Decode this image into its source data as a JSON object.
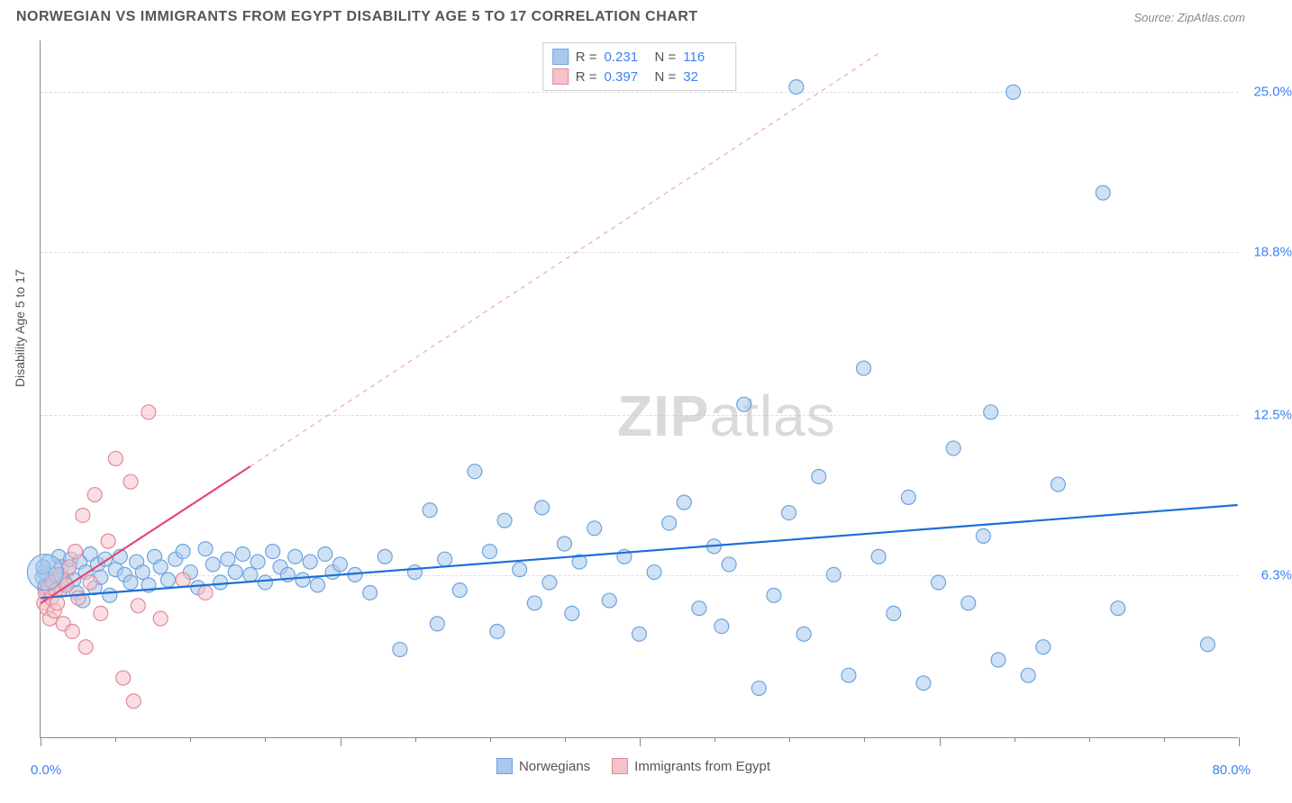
{
  "header": {
    "title": "NORWEGIAN VS IMMIGRANTS FROM EGYPT DISABILITY AGE 5 TO 17 CORRELATION CHART",
    "source": "Source: ZipAtlas.com"
  },
  "watermark": {
    "bold": "ZIP",
    "light": "atlas"
  },
  "chart": {
    "type": "scatter",
    "ylabel": "Disability Age 5 to 17",
    "xlim": [
      0,
      80
    ],
    "ylim": [
      0,
      27
    ],
    "x_left_label": "0.0%",
    "x_right_label": "80.0%",
    "ytick_labels": [
      {
        "v": 6.3,
        "label": "6.3%"
      },
      {
        "v": 12.5,
        "label": "12.5%"
      },
      {
        "v": 18.8,
        "label": "18.8%"
      },
      {
        "v": 25.0,
        "label": "25.0%"
      }
    ],
    "xticks_minor": [
      0,
      5,
      10,
      15,
      20,
      25,
      30,
      35,
      40,
      45,
      50,
      55,
      60,
      65,
      70,
      75,
      80
    ],
    "xticks_major": [
      0,
      20,
      40,
      60,
      80
    ],
    "background_color": "#ffffff",
    "grid_color": "#dddddd",
    "series": [
      {
        "name": "Norwegians",
        "color_fill": "#a8c8ec",
        "color_stroke": "#6fa3dc",
        "fill_opacity": 0.55,
        "marker_r": 8,
        "trend": {
          "x1": 0,
          "y1": 5.4,
          "x2": 80,
          "y2": 9.0,
          "stroke": "#1d6fd8",
          "width": 2.2,
          "dash": ""
        },
        "R": "0.231",
        "N": "116",
        "points": [
          [
            0.2,
            6.4
          ],
          [
            0.3,
            5.9
          ],
          [
            0.5,
            6.8
          ],
          [
            0.8,
            6.1
          ],
          [
            1,
            6.3
          ],
          [
            1.2,
            7.0
          ],
          [
            1.3,
            5.7
          ],
          [
            1.4,
            6.6
          ],
          [
            1.6,
            6.0
          ],
          [
            1.8,
            6.5
          ],
          [
            2.0,
            6.9
          ],
          [
            2.2,
            6.1
          ],
          [
            2.4,
            5.6
          ],
          [
            2.6,
            6.8
          ],
          [
            2.8,
            5.3
          ],
          [
            3.0,
            6.4
          ],
          [
            3.3,
            7.1
          ],
          [
            3.6,
            5.8
          ],
          [
            3.8,
            6.7
          ],
          [
            4.0,
            6.2
          ],
          [
            4.3,
            6.9
          ],
          [
            4.6,
            5.5
          ],
          [
            5.0,
            6.5
          ],
          [
            5.3,
            7.0
          ],
          [
            5.6,
            6.3
          ],
          [
            6.0,
            6.0
          ],
          [
            6.4,
            6.8
          ],
          [
            6.8,
            6.4
          ],
          [
            7.2,
            5.9
          ],
          [
            7.6,
            7.0
          ],
          [
            8.0,
            6.6
          ],
          [
            8.5,
            6.1
          ],
          [
            9.0,
            6.9
          ],
          [
            9.5,
            7.2
          ],
          [
            10,
            6.4
          ],
          [
            10.5,
            5.8
          ],
          [
            11,
            7.3
          ],
          [
            11.5,
            6.7
          ],
          [
            12,
            6.0
          ],
          [
            12.5,
            6.9
          ],
          [
            13,
            6.4
          ],
          [
            13.5,
            7.1
          ],
          [
            14,
            6.3
          ],
          [
            14.5,
            6.8
          ],
          [
            15,
            6.0
          ],
          [
            15.5,
            7.2
          ],
          [
            16,
            6.6
          ],
          [
            16.5,
            6.3
          ],
          [
            17,
            7.0
          ],
          [
            17.5,
            6.1
          ],
          [
            18,
            6.8
          ],
          [
            18.5,
            5.9
          ],
          [
            19,
            7.1
          ],
          [
            19.5,
            6.4
          ],
          [
            20,
            6.7
          ],
          [
            21,
            6.3
          ],
          [
            22,
            5.6
          ],
          [
            23,
            7.0
          ],
          [
            24,
            3.4
          ],
          [
            25,
            6.4
          ],
          [
            26,
            8.8
          ],
          [
            26.5,
            4.4
          ],
          [
            27,
            6.9
          ],
          [
            28,
            5.7
          ],
          [
            29,
            10.3
          ],
          [
            30,
            7.2
          ],
          [
            30.5,
            4.1
          ],
          [
            31,
            8.4
          ],
          [
            32,
            6.5
          ],
          [
            33,
            5.2
          ],
          [
            33.5,
            8.9
          ],
          [
            34,
            6.0
          ],
          [
            35,
            7.5
          ],
          [
            35.5,
            4.8
          ],
          [
            36,
            6.8
          ],
          [
            37,
            8.1
          ],
          [
            38,
            5.3
          ],
          [
            39,
            7.0
          ],
          [
            40,
            4.0
          ],
          [
            41,
            6.4
          ],
          [
            42,
            8.3
          ],
          [
            43,
            9.1
          ],
          [
            44,
            5.0
          ],
          [
            45,
            7.4
          ],
          [
            45.5,
            4.3
          ],
          [
            46,
            6.7
          ],
          [
            47,
            12.9
          ],
          [
            48,
            1.9
          ],
          [
            49,
            5.5
          ],
          [
            50,
            8.7
          ],
          [
            50.5,
            25.2
          ],
          [
            51,
            4.0
          ],
          [
            52,
            10.1
          ],
          [
            53,
            6.3
          ],
          [
            54,
            2.4
          ],
          [
            55,
            14.3
          ],
          [
            56,
            7.0
          ],
          [
            57,
            4.8
          ],
          [
            58,
            9.3
          ],
          [
            59,
            2.1
          ],
          [
            60,
            6.0
          ],
          [
            61,
            11.2
          ],
          [
            62,
            5.2
          ],
          [
            63,
            7.8
          ],
          [
            63.5,
            12.6
          ],
          [
            64,
            3.0
          ],
          [
            65,
            25.0
          ],
          [
            66,
            2.4
          ],
          [
            67,
            3.5
          ],
          [
            68,
            9.8
          ],
          [
            71,
            21.1
          ],
          [
            72,
            5.0
          ],
          [
            78,
            3.6
          ],
          [
            0.1,
            6.2
          ],
          [
            0.15,
            6.6
          ],
          [
            0.25,
            5.8
          ]
        ],
        "big_point": {
          "x": 0.3,
          "y": 6.4,
          "r": 20
        }
      },
      {
        "name": "Immigrants from Egypt",
        "color_fill": "#f5c2cb",
        "color_stroke": "#e08a9b",
        "fill_opacity": 0.55,
        "marker_r": 8,
        "trend": {
          "x1": 0,
          "y1": 5.2,
          "x2": 14,
          "y2": 10.5,
          "stroke": "#e24a6e",
          "width": 2.2,
          "dash": ""
        },
        "trend_ext": {
          "x1": 14,
          "y1": 10.5,
          "x2": 56,
          "y2": 26.5,
          "stroke": "#f0a5b5",
          "width": 1.2,
          "dash": "5,5"
        },
        "R": "0.397",
        "N": "32",
        "points": [
          [
            0.2,
            5.2
          ],
          [
            0.3,
            5.6
          ],
          [
            0.4,
            5.0
          ],
          [
            0.5,
            5.8
          ],
          [
            0.6,
            4.6
          ],
          [
            0.7,
            5.4
          ],
          [
            0.8,
            6.0
          ],
          [
            0.9,
            4.9
          ],
          [
            1.0,
            5.7
          ],
          [
            1.1,
            5.2
          ],
          [
            1.3,
            6.3
          ],
          [
            1.5,
            4.4
          ],
          [
            1.7,
            5.9
          ],
          [
            1.9,
            6.6
          ],
          [
            2.1,
            4.1
          ],
          [
            2.3,
            7.2
          ],
          [
            2.5,
            5.4
          ],
          [
            2.8,
            8.6
          ],
          [
            3.0,
            3.5
          ],
          [
            3.3,
            6.0
          ],
          [
            3.6,
            9.4
          ],
          [
            4.0,
            4.8
          ],
          [
            4.5,
            7.6
          ],
          [
            5.0,
            10.8
          ],
          [
            5.5,
            2.3
          ],
          [
            6.0,
            9.9
          ],
          [
            6.5,
            5.1
          ],
          [
            7.2,
            12.6
          ],
          [
            8.0,
            4.6
          ],
          [
            9.5,
            6.1
          ],
          [
            11,
            5.6
          ],
          [
            6.2,
            1.4
          ]
        ]
      }
    ],
    "legend_bottom": [
      {
        "swatch": "blue",
        "label": "Norwegians"
      },
      {
        "swatch": "pink",
        "label": "Immigrants from Egypt"
      }
    ]
  }
}
